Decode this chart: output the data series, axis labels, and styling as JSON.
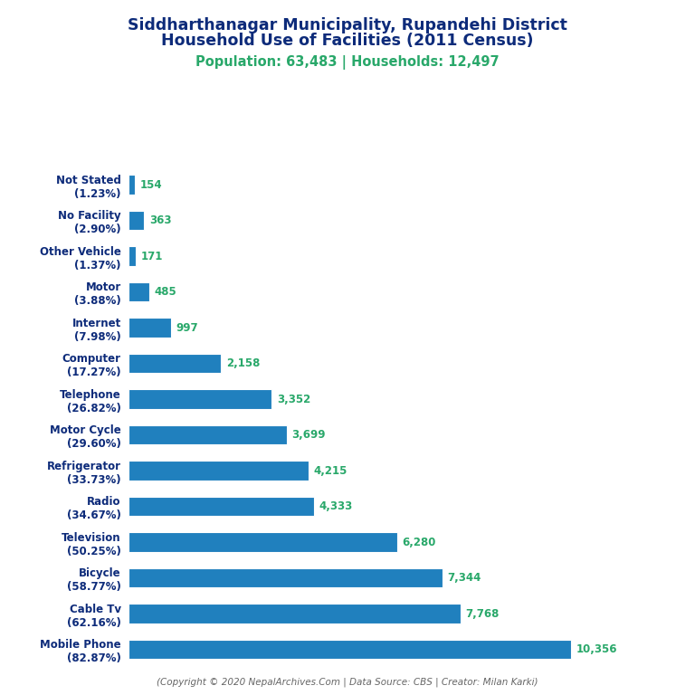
{
  "title_line1": "Siddharthanagar Municipality, Rupandehi District",
  "title_line2": "Household Use of Facilities (2011 Census)",
  "subtitle": "Population: 63,483 | Households: 12,497",
  "footer": "(Copyright © 2020 NepalArchives.Com | Data Source: CBS | Creator: Milan Karki)",
  "categories": [
    "Mobile Phone\n(82.87%)",
    "Cable Tv\n(62.16%)",
    "Bicycle\n(58.77%)",
    "Television\n(50.25%)",
    "Radio\n(34.67%)",
    "Refrigerator\n(33.73%)",
    "Motor Cycle\n(29.60%)",
    "Telephone\n(26.82%)",
    "Computer\n(17.27%)",
    "Internet\n(7.98%)",
    "Motor\n(3.88%)",
    "Other Vehicle\n(1.37%)",
    "No Facility\n(2.90%)",
    "Not Stated\n(1.23%)"
  ],
  "values": [
    10356,
    7768,
    7344,
    6280,
    4333,
    4215,
    3699,
    3352,
    2158,
    997,
    485,
    171,
    363,
    154
  ],
  "bar_color": "#2080be",
  "value_color": "#29a86a",
  "title_color": "#0d2b7a",
  "subtitle_color": "#29a86a",
  "footer_color": "#666666",
  "background_color": "#ffffff",
  "label_color": "#0d2b7a",
  "xlim": 12200,
  "bar_height": 0.55
}
